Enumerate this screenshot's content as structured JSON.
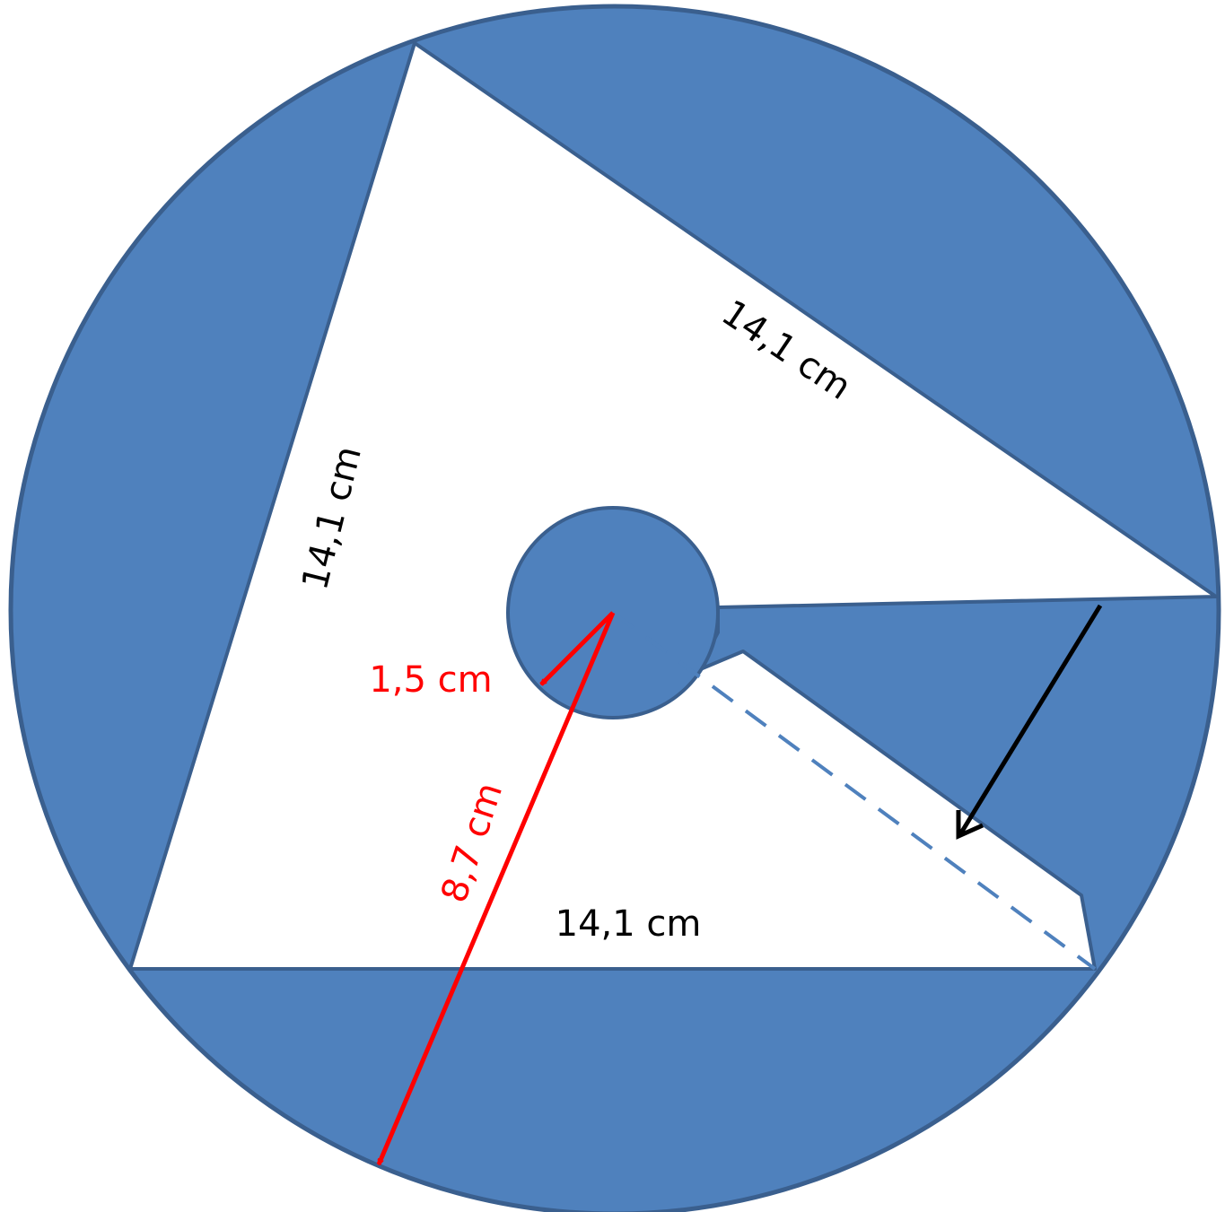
{
  "colors": {
    "fill": "#4f81bd",
    "stroke": "#3a5f8e",
    "background": "#ffffff",
    "dimension": "#ff0000",
    "text": "#000000",
    "fold_arrow": "#000000"
  },
  "labels": {
    "side_top_right": "14,1 cm",
    "side_left": "14,1 cm",
    "side_bottom": "14,1 cm",
    "small_radius": "1,5 cm",
    "large_radius": "8,7 cm"
  }
}
